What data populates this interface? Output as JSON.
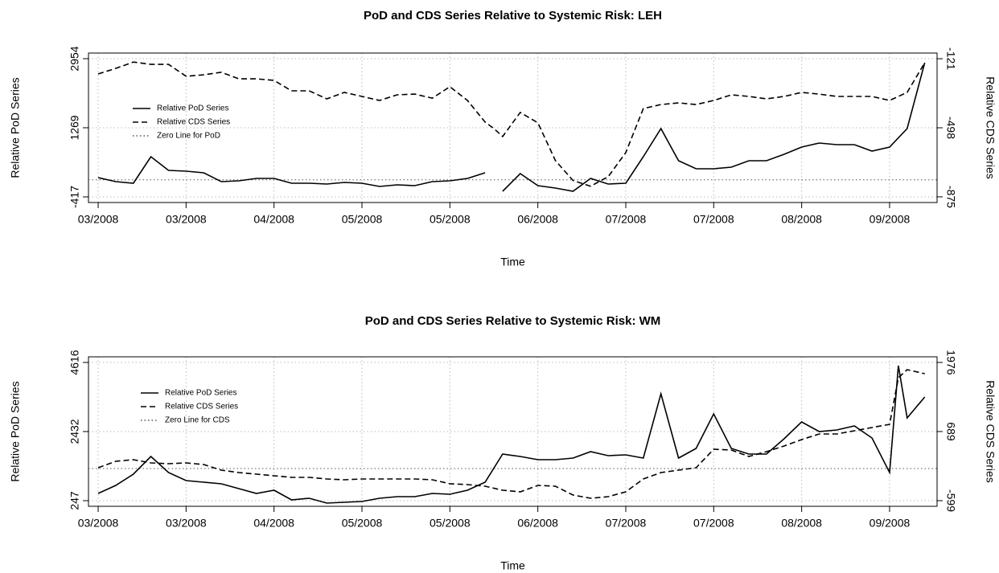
{
  "chart_data": [
    {
      "type": "line",
      "title": "PoD and CDS Series Relative to Systemic Risk: LEH",
      "x_label": "Time",
      "y_label": "Relative  PoD  Series",
      "y2_label": "Relative  CDS  Series",
      "x": [
        0,
        2,
        4,
        6,
        8,
        10,
        12,
        14,
        16,
        18,
        20,
        22,
        24,
        26,
        28,
        30,
        32,
        34,
        36,
        38,
        40,
        42,
        44,
        45,
        46,
        48,
        50,
        52,
        54,
        56,
        58,
        60,
        62,
        64,
        66,
        68,
        70,
        72,
        74,
        76,
        78,
        80,
        82,
        84,
        86,
        88,
        90,
        92,
        94
      ],
      "xlim": [
        -1.1,
        95.4
      ],
      "xticks": [
        {
          "value": 0,
          "label": "03/2008"
        },
        {
          "value": 10,
          "label": "03/2008"
        },
        {
          "value": 20,
          "label": "04/2008"
        },
        {
          "value": 30,
          "label": "05/2008"
        },
        {
          "value": 40,
          "label": "05/2008"
        },
        {
          "value": 50,
          "label": "06/2008"
        },
        {
          "value": 60,
          "label": "07/2008"
        },
        {
          "value": 70,
          "label": "07/2008"
        },
        {
          "value": 80,
          "label": "08/2008"
        },
        {
          "value": 90,
          "label": "09/2008"
        }
      ],
      "ylim": [
        -554,
        3091
      ],
      "yticks": [
        -417,
        1269,
        2954
      ],
      "y2lim": [
        -906,
        -90
      ],
      "y2ticks": [
        -875,
        -498,
        -121
      ],
      "grid": true,
      "series": [
        {
          "name": "Relative PoD Series",
          "color": "#000000",
          "style": "solid",
          "axis": "y",
          "values": [
            53,
            -45,
            -84,
            563,
            230,
            210,
            171,
            -45,
            -25,
            34,
            34,
            -84,
            -84,
            -104,
            -64,
            -84,
            -162,
            -123,
            -143,
            -45,
            -25,
            34,
            171,
            null,
            -280,
            151,
            -143,
            -202,
            -280,
            34,
            -104,
            -84,
            563,
            1249,
            465,
            269,
            269,
            308,
            465,
            465,
            622,
            798,
            896,
            857,
            857,
            700,
            798,
            1249,
            2856
          ]
        },
        {
          "name": "Relative CDS Series",
          "color": "#000000",
          "style": "dashed",
          "axis": "y2",
          "values": [
            -204,
            -174,
            -139,
            -152,
            -152,
            -217,
            -209,
            -195,
            -231,
            -231,
            -239,
            -296,
            -296,
            -340,
            -305,
            -327,
            -349,
            -318,
            -314,
            -336,
            -274,
            -349,
            -467,
            -502,
            -546,
            -414,
            -471,
            -677,
            -786,
            -817,
            -765,
            -633,
            -393,
            -371,
            -362,
            -371,
            -349,
            -318,
            -327,
            -340,
            -327,
            -305,
            -314,
            -327,
            -327,
            -327,
            -349,
            -305,
            -143
          ]
        }
      ],
      "reference_line": {
        "name": "Zero Line for PoD",
        "value": 0,
        "axis": "y",
        "style": "dotted",
        "color": "#555555"
      }
    },
    {
      "type": "line",
      "title": "PoD and CDS Series Relative to Systemic Risk: WM",
      "x_label": "Time",
      "y_label": "Relative  PoD  Series",
      "y2_label": "Relative  CDS  Series",
      "x": [
        0,
        2,
        4,
        6,
        8,
        10,
        12,
        14,
        16,
        18,
        20,
        22,
        24,
        26,
        28,
        30,
        32,
        34,
        36,
        38,
        40,
        42,
        44,
        46,
        48,
        50,
        52,
        54,
        56,
        58,
        60,
        62,
        64,
        66,
        68,
        70,
        72,
        74,
        76,
        78,
        80,
        82,
        84,
        86,
        88,
        90,
        91,
        92,
        94
      ],
      "xlim": [
        -1.1,
        95.4
      ],
      "xticks": [
        {
          "value": 0,
          "label": "03/2008"
        },
        {
          "value": 10,
          "label": "03/2008"
        },
        {
          "value": 20,
          "label": "04/2008"
        },
        {
          "value": 30,
          "label": "05/2008"
        },
        {
          "value": 40,
          "label": "05/2008"
        },
        {
          "value": 50,
          "label": "06/2008"
        },
        {
          "value": 60,
          "label": "07/2008"
        },
        {
          "value": 70,
          "label": "07/2008"
        },
        {
          "value": 80,
          "label": "08/2008"
        },
        {
          "value": 90,
          "label": "09/2008"
        }
      ],
      "ylim": [
        69,
        4794
      ],
      "yticks": [
        247,
        2432,
        4616
      ],
      "y2lim": [
        -704,
        2081
      ],
      "y2ticks": [
        -599,
        689,
        1976
      ],
      "grid": true,
      "series": [
        {
          "name": "Relative PoD Series",
          "color": "#000000",
          "style": "solid",
          "axis": "y",
          "values": [
            476,
            730,
            1085,
            1644,
            1136,
            882,
            831,
            781,
            628,
            476,
            577,
            273,
            323,
            171,
            196,
            222,
            323,
            374,
            374,
            476,
            450,
            577,
            831,
            1720,
            1644,
            1543,
            1543,
            1593,
            1797,
            1670,
            1695,
            1593,
            3625,
            1593,
            1898,
            2990,
            1898,
            1720,
            1720,
            2203,
            2736,
            2432,
            2482,
            2609,
            2228,
            1136,
            4514,
            2863,
            3524
          ]
        },
        {
          "name": "Relative CDS Series",
          "color": "#000000",
          "style": "dashed",
          "axis": "y2",
          "values": [
            15,
            135,
            165,
            105,
            90,
            105,
            75,
            -30,
            -75,
            -105,
            -135,
            -165,
            -165,
            -195,
            -210,
            -195,
            -195,
            -195,
            -195,
            -210,
            -284,
            -299,
            -329,
            -404,
            -434,
            -314,
            -329,
            -494,
            -554,
            -524,
            -434,
            -195,
            -75,
            -30,
            15,
            359,
            344,
            225,
            314,
            419,
            539,
            644,
            644,
            704,
            763,
            823,
            1692,
            1841,
            1766
          ]
        }
      ],
      "reference_line": {
        "name": "Zero Line for CDS",
        "value": 0,
        "axis": "y2",
        "style": "dotted",
        "color": "#555555"
      }
    }
  ]
}
